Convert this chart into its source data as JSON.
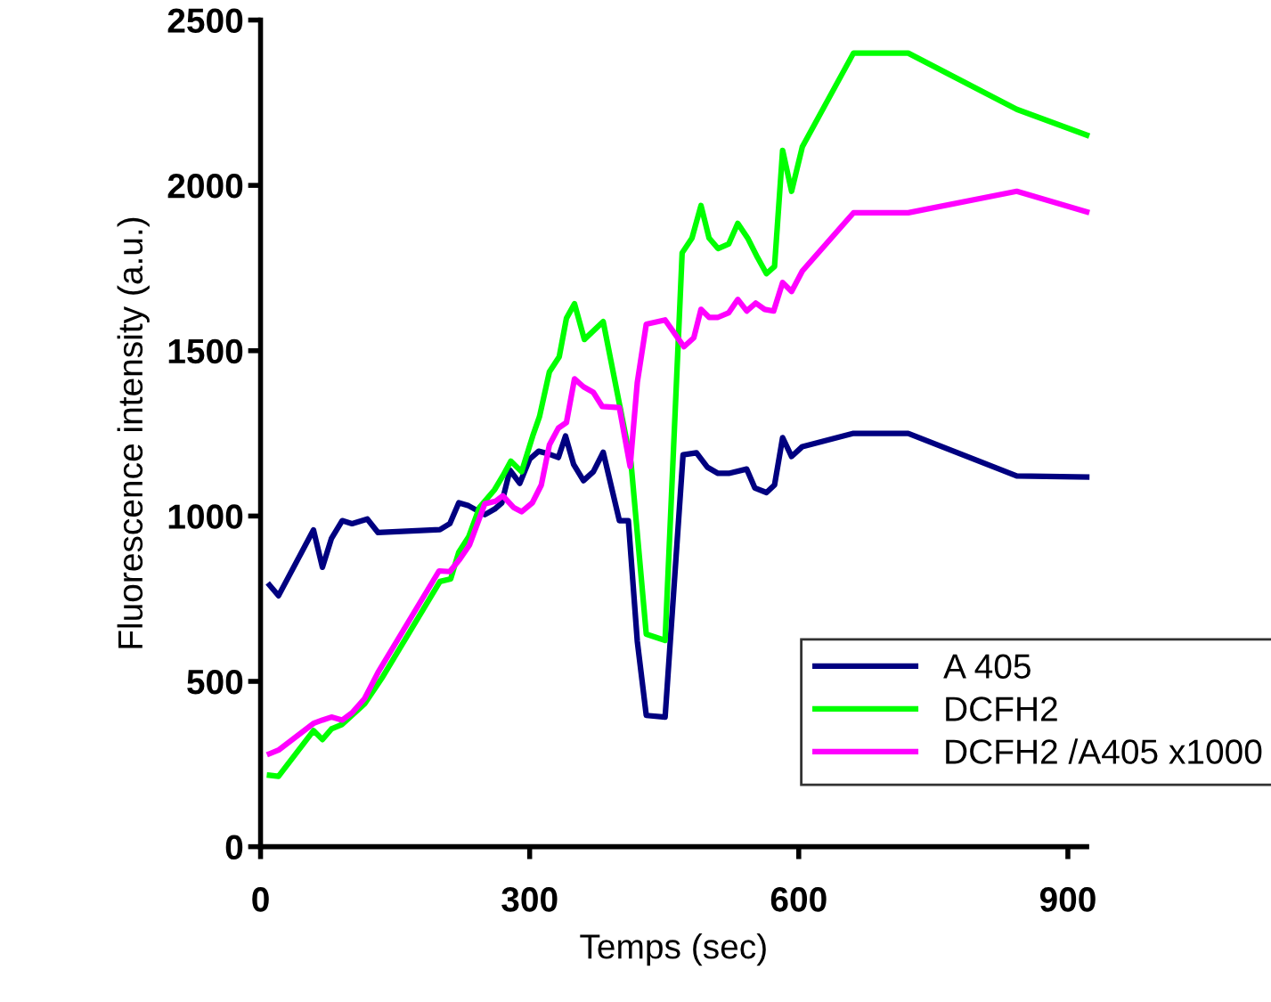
{
  "chart_data": {
    "type": "line",
    "xlabel": "Temps (sec)",
    "ylabel": "Fluorescence intensity (a.u.)",
    "xlim": [
      0,
      921
    ],
    "xticks": [
      0,
      300,
      600,
      900
    ],
    "ylim": [
      0,
      2500
    ],
    "yticks": [
      0,
      500,
      1000,
      1500,
      2000,
      2500
    ],
    "grid": false,
    "legend": "bottom right",
    "marker": "none",
    "line_style": "solid",
    "series": [
      {
        "name": "A 405",
        "color": "#000080",
        "x": [
          10,
          20,
          59,
          69,
          79,
          91,
          102,
          119,
          131,
          200,
          211,
          221,
          232,
          250,
          261,
          269,
          278,
          289,
          300,
          310,
          321,
          332,
          340,
          349,
          360,
          371,
          382,
          400,
          410,
          420,
          430,
          451,
          471,
          486,
          498,
          510,
          522,
          542,
          551,
          564,
          573,
          582,
          592,
          604,
          661,
          722,
          843,
          921
        ],
        "values": [
          791,
          759,
          958,
          845,
          932,
          986,
          977,
          991,
          950,
          959,
          977,
          1040,
          1031,
          1004,
          1021,
          1040,
          1139,
          1099,
          1172,
          1196,
          1188,
          1177,
          1242,
          1156,
          1107,
          1134,
          1193,
          986,
          986,
          621,
          397,
          392,
          1185,
          1191,
          1148,
          1129,
          1129,
          1142,
          1085,
          1071,
          1094,
          1237,
          1180,
          1210,
          1250,
          1250,
          1121,
          1118
        ]
      },
      {
        "name": "DCFH2",
        "color": "#00ff00",
        "x": [
          10,
          20,
          59,
          69,
          79,
          91,
          116,
          136,
          200,
          212,
          221,
          232,
          244,
          261,
          270,
          279,
          291,
          304,
          311,
          322,
          333,
          341,
          350,
          361,
          382,
          413,
          430,
          451,
          470,
          481,
          491,
          500,
          510,
          522,
          532,
          543,
          554,
          564,
          573,
          582,
          592,
          604,
          661,
          722,
          843,
          921
        ],
        "values": [
          216,
          213,
          351,
          324,
          356,
          370,
          432,
          513,
          802,
          810,
          891,
          937,
          1026,
          1080,
          1121,
          1166,
          1134,
          1247,
          1301,
          1436,
          1482,
          1598,
          1642,
          1534,
          1588,
          1161,
          643,
          624,
          1796,
          1841,
          1939,
          1841,
          1809,
          1823,
          1885,
          1841,
          1782,
          1733,
          1755,
          2106,
          1982,
          2117,
          2400,
          2400,
          2230,
          2152
        ]
      },
      {
        "name": "DCFH2 /A405 x1000",
        "color": "#ff00ff",
        "x": [
          10,
          20,
          59,
          69,
          79,
          91,
          102,
          116,
          131,
          199,
          211,
          222,
          233,
          250,
          262,
          270,
          282,
          291,
          303,
          313,
          322,
          332,
          341,
          350,
          360,
          371,
          381,
          400,
          412,
          420,
          430,
          451,
          472,
          483,
          491,
          500,
          510,
          522,
          532,
          542,
          552,
          562,
          572,
          582,
          592,
          604,
          661,
          722,
          843,
          921
        ],
        "values": [
          281,
          292,
          373,
          383,
          392,
          383,
          405,
          448,
          527,
          834,
          832,
          869,
          913,
          1037,
          1045,
          1061,
          1026,
          1013,
          1040,
          1094,
          1215,
          1266,
          1283,
          1415,
          1391,
          1374,
          1331,
          1328,
          1150,
          1404,
          1580,
          1593,
          1512,
          1539,
          1625,
          1601,
          1601,
          1615,
          1655,
          1620,
          1644,
          1625,
          1620,
          1706,
          1679,
          1741,
          1917,
          1917,
          1982,
          1920
        ]
      }
    ]
  }
}
